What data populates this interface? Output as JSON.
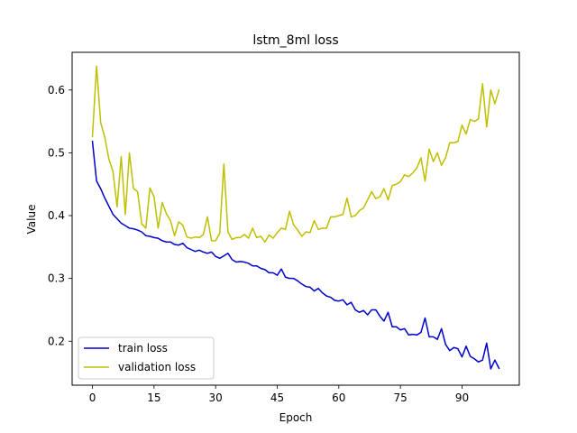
{
  "chart_data": {
    "type": "line",
    "title": "lstm_8ml loss",
    "xlabel": "Epoch",
    "ylabel": "Value",
    "xlim": [
      -4.95,
      103.95
    ],
    "ylim": [
      0.13,
      0.66
    ],
    "xticks": [
      0,
      15,
      30,
      45,
      60,
      75,
      90
    ],
    "yticks": [
      0.2,
      0.3,
      0.4,
      0.5,
      0.6
    ],
    "ytick_labels": [
      "0.2",
      "0.3",
      "0.4",
      "0.5",
      "0.6"
    ],
    "grid": false,
    "legend": "lower-left",
    "series": [
      {
        "name": "train loss",
        "color": "#0000cc",
        "x": [
          0,
          1,
          2,
          3,
          4,
          5,
          6,
          7,
          8,
          9,
          10,
          11,
          12,
          13,
          14,
          15,
          16,
          17,
          18,
          19,
          20,
          21,
          22,
          23,
          24,
          25,
          26,
          27,
          28,
          29,
          30,
          31,
          32,
          33,
          34,
          35,
          36,
          37,
          38,
          39,
          40,
          41,
          42,
          43,
          44,
          45,
          46,
          47,
          48,
          49,
          50,
          51,
          52,
          53,
          54,
          55,
          56,
          57,
          58,
          59,
          60,
          61,
          62,
          63,
          64,
          65,
          66,
          67,
          68,
          69,
          70,
          71,
          72,
          73,
          74,
          75,
          76,
          77,
          78,
          79,
          80,
          81,
          82,
          83,
          84,
          85,
          86,
          87,
          88,
          89,
          90,
          91,
          92,
          93,
          94,
          95,
          96,
          97,
          98,
          99
        ],
        "values": [
          0.518,
          0.455,
          0.443,
          0.428,
          0.415,
          0.402,
          0.395,
          0.388,
          0.384,
          0.38,
          0.379,
          0.377,
          0.374,
          0.368,
          0.367,
          0.365,
          0.364,
          0.36,
          0.358,
          0.358,
          0.354,
          0.353,
          0.356,
          0.349,
          0.346,
          0.343,
          0.345,
          0.342,
          0.34,
          0.342,
          0.335,
          0.332,
          0.336,
          0.34,
          0.33,
          0.326,
          0.327,
          0.326,
          0.324,
          0.32,
          0.32,
          0.316,
          0.314,
          0.309,
          0.309,
          0.305,
          0.315,
          0.302,
          0.3,
          0.3,
          0.296,
          0.291,
          0.287,
          0.286,
          0.28,
          0.284,
          0.277,
          0.272,
          0.27,
          0.265,
          0.264,
          0.266,
          0.258,
          0.262,
          0.25,
          0.246,
          0.249,
          0.242,
          0.25,
          0.25,
          0.24,
          0.232,
          0.246,
          0.223,
          0.223,
          0.218,
          0.22,
          0.21,
          0.211,
          0.21,
          0.214,
          0.237,
          0.207,
          0.207,
          0.203,
          0.22,
          0.195,
          0.185,
          0.19,
          0.188,
          0.175,
          0.192,
          0.176,
          0.172,
          0.167,
          0.17,
          0.197,
          0.156,
          0.17,
          0.157
        ]
      },
      {
        "name": "validation loss",
        "color": "#bfbf00",
        "x": [
          0,
          1,
          2,
          3,
          4,
          5,
          6,
          7,
          8,
          9,
          10,
          11,
          12,
          13,
          14,
          15,
          16,
          17,
          18,
          19,
          20,
          21,
          22,
          23,
          24,
          25,
          26,
          27,
          28,
          29,
          30,
          31,
          32,
          33,
          34,
          35,
          36,
          37,
          38,
          39,
          40,
          41,
          42,
          43,
          44,
          45,
          46,
          47,
          48,
          49,
          50,
          51,
          52,
          53,
          54,
          55,
          56,
          57,
          58,
          59,
          60,
          61,
          62,
          63,
          64,
          65,
          66,
          67,
          68,
          69,
          70,
          71,
          72,
          73,
          74,
          75,
          76,
          77,
          78,
          79,
          80,
          81,
          82,
          83,
          84,
          85,
          86,
          87,
          88,
          89,
          90,
          91,
          92,
          93,
          94,
          95,
          96,
          97,
          98,
          99
        ],
        "values": [
          0.526,
          0.638,
          0.548,
          0.525,
          0.49,
          0.47,
          0.414,
          0.494,
          0.402,
          0.5,
          0.443,
          0.438,
          0.387,
          0.38,
          0.444,
          0.43,
          0.38,
          0.421,
          0.403,
          0.392,
          0.368,
          0.39,
          0.385,
          0.366,
          0.364,
          0.366,
          0.365,
          0.37,
          0.398,
          0.36,
          0.36,
          0.372,
          0.482,
          0.374,
          0.362,
          0.365,
          0.365,
          0.37,
          0.364,
          0.38,
          0.365,
          0.367,
          0.358,
          0.369,
          0.364,
          0.373,
          0.38,
          0.378,
          0.407,
          0.385,
          0.377,
          0.367,
          0.374,
          0.373,
          0.392,
          0.378,
          0.38,
          0.38,
          0.398,
          0.398,
          0.4,
          0.402,
          0.428,
          0.398,
          0.4,
          0.408,
          0.412,
          0.425,
          0.438,
          0.427,
          0.43,
          0.443,
          0.425,
          0.448,
          0.45,
          0.454,
          0.465,
          0.462,
          0.468,
          0.476,
          0.492,
          0.455,
          0.506,
          0.486,
          0.5,
          0.48,
          0.492,
          0.516,
          0.516,
          0.518,
          0.544,
          0.53,
          0.553,
          0.55,
          0.554,
          0.61,
          0.541,
          0.6,
          0.578,
          0.6
        ]
      }
    ]
  }
}
